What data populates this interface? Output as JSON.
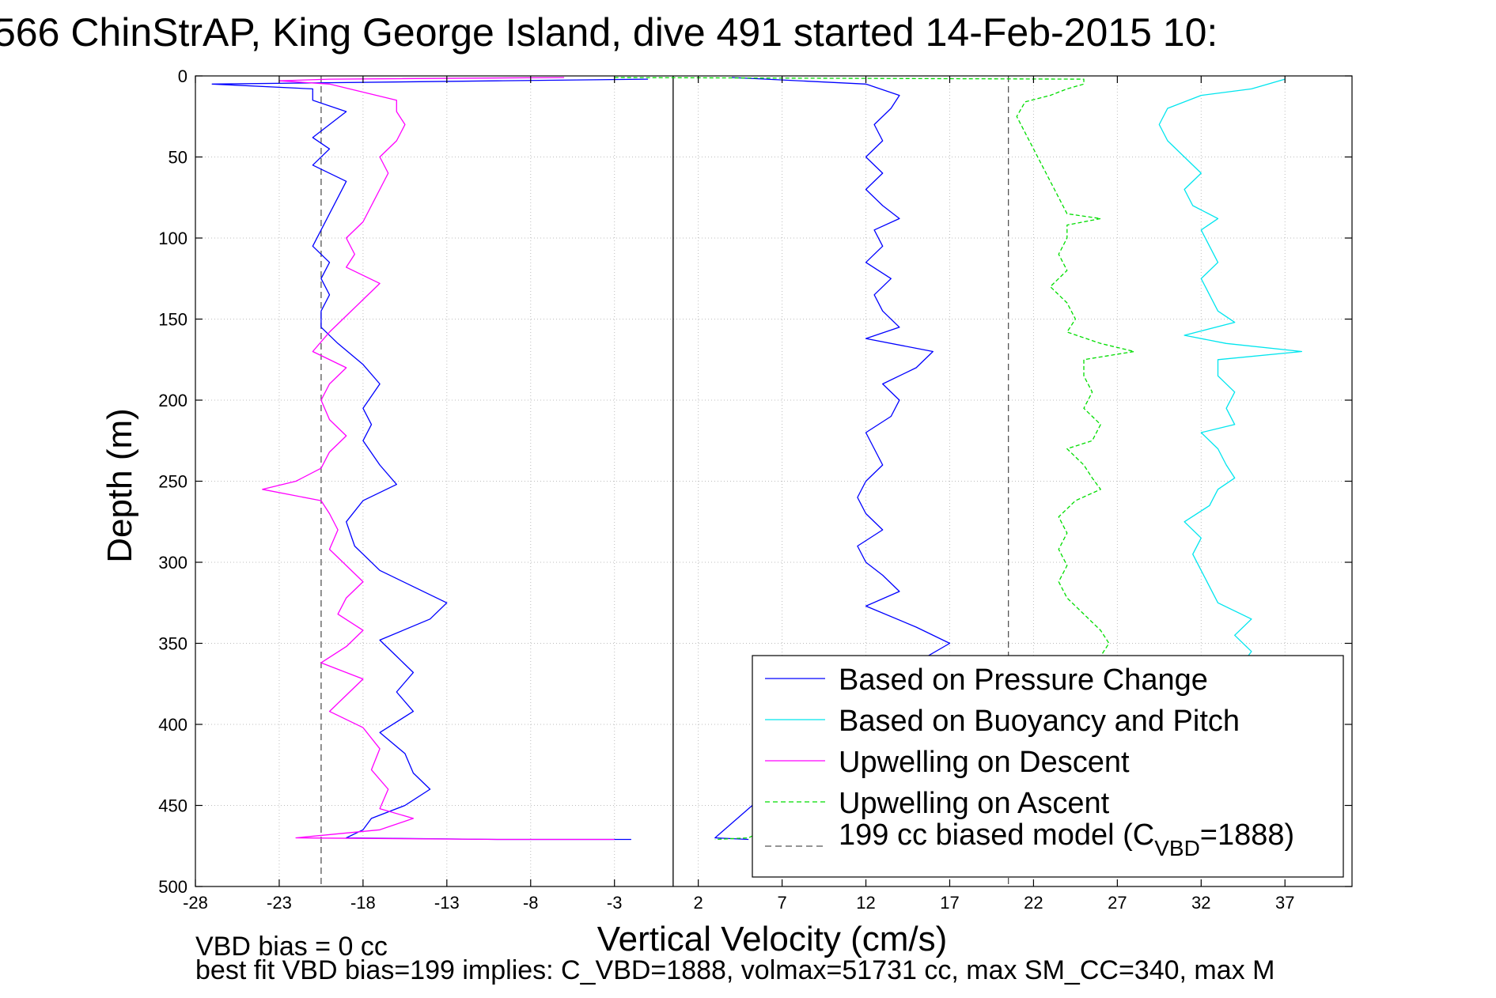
{
  "chart_data": {
    "type": "line",
    "title": "566 ChinStrAP, King George Island, dive 491 started 14-Feb-2015 10:",
    "xlabel": "Vertical Velocity (cm/s)",
    "ylabel": "Depth (m)",
    "xlim": [
      -28,
      41
    ],
    "ylim": [
      0,
      500
    ],
    "y_reversed": true,
    "grid": true,
    "xticks": [
      -28,
      -23,
      -18,
      -13,
      -8,
      -3,
      2,
      7,
      12,
      17,
      22,
      27,
      32,
      37
    ],
    "yticks": [
      0,
      50,
      100,
      150,
      200,
      250,
      300,
      350,
      400,
      450,
      500
    ],
    "reference_lines": [
      {
        "x": 0.5,
        "style": "solid",
        "color": "#000000"
      },
      {
        "x": -20.5,
        "style": "dashed",
        "color": "#555555"
      },
      {
        "x": 20.5,
        "style": "dashed",
        "color": "#555555"
      }
    ],
    "legend": {
      "position": "bottom-right",
      "entries": [
        {
          "label": "Based on Pressure Change",
          "color": "#0000ff",
          "style": "solid"
        },
        {
          "label": "Based on Buoyancy and Pitch",
          "color": "#00e5ee",
          "style": "solid"
        },
        {
          "label": "Upwelling on Descent",
          "color": "#ff00ff",
          "style": "solid"
        },
        {
          "label": "Upwelling on Ascent",
          "color": "#00dd00",
          "style": "dashed"
        },
        {
          "label_main": "199 cc biased model (C",
          "label_sub": "VBD",
          "label_tail": "=1888)",
          "color": "#555555",
          "style": "dashed"
        }
      ]
    },
    "series": [
      {
        "key": "pressure_descent",
        "color": "#0000ff",
        "points": [
          [
            -1,
            2
          ],
          [
            -10,
            3
          ],
          [
            -27,
            5
          ],
          [
            -21,
            8
          ],
          [
            -21,
            15
          ],
          [
            -19,
            22
          ],
          [
            -20,
            30
          ],
          [
            -21,
            38
          ],
          [
            -20,
            45
          ],
          [
            -21,
            55
          ],
          [
            -19,
            65
          ],
          [
            -19.5,
            75
          ],
          [
            -20,
            85
          ],
          [
            -20.5,
            95
          ],
          [
            -21,
            105
          ],
          [
            -20,
            115
          ],
          [
            -20.5,
            125
          ],
          [
            -20,
            135
          ],
          [
            -20.5,
            145
          ],
          [
            -20.5,
            155
          ],
          [
            -19.5,
            165
          ],
          [
            -18,
            178
          ],
          [
            -17,
            190
          ],
          [
            -18,
            205
          ],
          [
            -17.5,
            215
          ],
          [
            -18,
            225
          ],
          [
            -17,
            240
          ],
          [
            -16,
            252
          ],
          [
            -18,
            262
          ],
          [
            -19,
            275
          ],
          [
            -18.5,
            290
          ],
          [
            -17,
            305
          ],
          [
            -15,
            315
          ],
          [
            -13,
            325
          ],
          [
            -14,
            335
          ],
          [
            -17,
            348
          ],
          [
            -16,
            358
          ],
          [
            -15,
            368
          ],
          [
            -16,
            380
          ],
          [
            -15,
            392
          ],
          [
            -17,
            405
          ],
          [
            -15.5,
            418
          ],
          [
            -15,
            430
          ],
          [
            -14,
            440
          ],
          [
            -15.5,
            450
          ],
          [
            -17.5,
            458
          ],
          [
            -18,
            465
          ],
          [
            -19,
            470
          ],
          [
            -10,
            471
          ],
          [
            -2,
            471
          ]
        ]
      },
      {
        "key": "upwelling_descent",
        "color": "#ff00ff",
        "points": [
          [
            -6,
            1
          ],
          [
            -20,
            2
          ],
          [
            -23,
            3
          ],
          [
            -20,
            5
          ],
          [
            -18,
            10
          ],
          [
            -16,
            15
          ],
          [
            -16,
            22
          ],
          [
            -15.5,
            30
          ],
          [
            -16,
            40
          ],
          [
            -17,
            50
          ],
          [
            -16.5,
            60
          ],
          [
            -17,
            70
          ],
          [
            -17.5,
            80
          ],
          [
            -18,
            90
          ],
          [
            -19,
            100
          ],
          [
            -18.5,
            110
          ],
          [
            -19,
            118
          ],
          [
            -17,
            128
          ],
          [
            -18,
            138
          ],
          [
            -19,
            148
          ],
          [
            -20,
            158
          ],
          [
            -21,
            170
          ],
          [
            -19,
            180
          ],
          [
            -20,
            190
          ],
          [
            -20.5,
            200
          ],
          [
            -20,
            212
          ],
          [
            -19,
            222
          ],
          [
            -20,
            232
          ],
          [
            -20.5,
            242
          ],
          [
            -22,
            250
          ],
          [
            -24,
            255
          ],
          [
            -20.5,
            262
          ],
          [
            -20,
            270
          ],
          [
            -19.5,
            280
          ],
          [
            -20,
            292
          ],
          [
            -19,
            302
          ],
          [
            -18,
            312
          ],
          [
            -19,
            322
          ],
          [
            -19.5,
            332
          ],
          [
            -18,
            342
          ],
          [
            -19,
            352
          ],
          [
            -20.5,
            362
          ],
          [
            -18,
            372
          ],
          [
            -19,
            382
          ],
          [
            -20,
            392
          ],
          [
            -18,
            402
          ],
          [
            -17,
            415
          ],
          [
            -17.5,
            428
          ],
          [
            -16.5,
            440
          ],
          [
            -17,
            452
          ],
          [
            -15,
            458
          ],
          [
            -17,
            465
          ],
          [
            -22,
            470
          ],
          [
            -10,
            471
          ],
          [
            -3,
            471
          ]
        ]
      },
      {
        "key": "pressure_ascent",
        "color": "#0000ff",
        "points": [
          [
            5,
            471
          ],
          [
            3,
            470
          ],
          [
            15,
            362
          ],
          [
            17,
            350
          ],
          [
            15,
            340
          ],
          [
            12,
            327
          ],
          [
            14,
            318
          ],
          [
            13,
            308
          ],
          [
            12,
            300
          ],
          [
            11.5,
            290
          ],
          [
            13,
            280
          ],
          [
            12,
            270
          ],
          [
            11.5,
            260
          ],
          [
            12,
            250
          ],
          [
            13,
            240
          ],
          [
            12.5,
            230
          ],
          [
            12,
            220
          ],
          [
            13.5,
            210
          ],
          [
            14,
            200
          ],
          [
            13,
            190
          ],
          [
            15,
            180
          ],
          [
            16,
            170
          ],
          [
            12,
            162
          ],
          [
            14,
            155
          ],
          [
            13,
            145
          ],
          [
            12.5,
            135
          ],
          [
            13.5,
            125
          ],
          [
            12,
            115
          ],
          [
            13,
            105
          ],
          [
            12.5,
            95
          ],
          [
            14,
            88
          ],
          [
            13,
            80
          ],
          [
            12,
            70
          ],
          [
            13,
            60
          ],
          [
            12,
            50
          ],
          [
            13,
            40
          ],
          [
            12.5,
            30
          ],
          [
            13.5,
            20
          ],
          [
            14,
            12
          ],
          [
            12,
            5
          ],
          [
            4,
            1
          ]
        ]
      },
      {
        "key": "buoyancy_pitch",
        "color": "#00e5ee",
        "points": [
          [
            37,
            2
          ],
          [
            36,
            5
          ],
          [
            35,
            8
          ],
          [
            32,
            12
          ],
          [
            30,
            20
          ],
          [
            29.5,
            30
          ],
          [
            30,
            40
          ],
          [
            31,
            50
          ],
          [
            32,
            60
          ],
          [
            31,
            70
          ],
          [
            31.5,
            80
          ],
          [
            33,
            88
          ],
          [
            32,
            95
          ],
          [
            32.5,
            105
          ],
          [
            33,
            115
          ],
          [
            32,
            125
          ],
          [
            32.5,
            135
          ],
          [
            33,
            145
          ],
          [
            34,
            152
          ],
          [
            31,
            160
          ],
          [
            33.5,
            165
          ],
          [
            38,
            170
          ],
          [
            33,
            175
          ],
          [
            33,
            185
          ],
          [
            34,
            195
          ],
          [
            33.5,
            205
          ],
          [
            34,
            215
          ],
          [
            32,
            220
          ],
          [
            33,
            230
          ],
          [
            33.5,
            240
          ],
          [
            34,
            248
          ],
          [
            33,
            255
          ],
          [
            32.5,
            265
          ],
          [
            31,
            275
          ],
          [
            32,
            285
          ],
          [
            31.5,
            295
          ],
          [
            32,
            305
          ],
          [
            32.5,
            315
          ],
          [
            33,
            325
          ],
          [
            35,
            335
          ],
          [
            34,
            345
          ],
          [
            35,
            355
          ],
          [
            34.5,
            362
          ]
        ]
      },
      {
        "key": "upwelling_ascent",
        "color": "#00dd00",
        "points": [
          [
            -3,
            1
          ],
          [
            25,
            2
          ],
          [
            25,
            5
          ],
          [
            24,
            8
          ],
          [
            23,
            12
          ],
          [
            21.5,
            16
          ],
          [
            21,
            25
          ],
          [
            21.5,
            35
          ],
          [
            22,
            45
          ],
          [
            22.5,
            55
          ],
          [
            23,
            65
          ],
          [
            23.5,
            75
          ],
          [
            24,
            85
          ],
          [
            26,
            88
          ],
          [
            24,
            92
          ],
          [
            24,
            100
          ],
          [
            23.5,
            110
          ],
          [
            24,
            120
          ],
          [
            23,
            130
          ],
          [
            24,
            140
          ],
          [
            24.5,
            150
          ],
          [
            24,
            158
          ],
          [
            26,
            165
          ],
          [
            28,
            170
          ],
          [
            25,
            175
          ],
          [
            25,
            185
          ],
          [
            25.5,
            195
          ],
          [
            25,
            205
          ],
          [
            26,
            215
          ],
          [
            25.5,
            225
          ],
          [
            24,
            230
          ],
          [
            25,
            240
          ],
          [
            25.5,
            248
          ],
          [
            26,
            255
          ],
          [
            24.5,
            262
          ],
          [
            23.5,
            272
          ],
          [
            24,
            282
          ],
          [
            23.5,
            292
          ],
          [
            24,
            302
          ],
          [
            23.5,
            312
          ],
          [
            24,
            322
          ],
          [
            25,
            332
          ],
          [
            26,
            342
          ],
          [
            26.5,
            350
          ],
          [
            26,
            358
          ],
          [
            5,
            470
          ],
          [
            3,
            471
          ]
        ]
      }
    ]
  },
  "footer": {
    "vbd_bias": "VBD bias = 0 cc",
    "best_fit": "best fit VBD bias=199 implies: C_VBD=1888, volmax=51731 cc, max SM_CC=340, max M"
  }
}
